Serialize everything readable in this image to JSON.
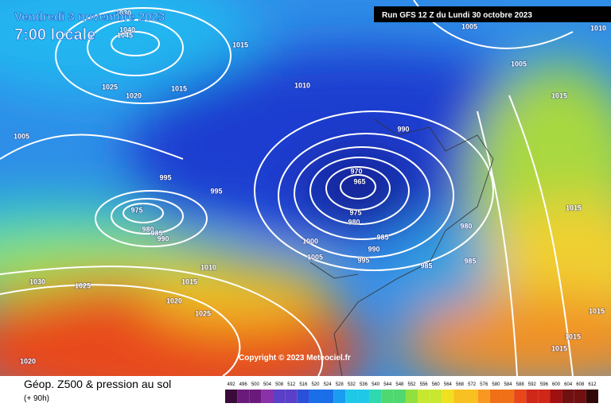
{
  "header": {
    "date": "Vendredi 3 novembre 2023",
    "time": "7:00 locale",
    "run": "Run GFS 12 Z du Lundi 30 octobre 2023"
  },
  "copyright": "Copyright © 2023 Meteociel.fr",
  "footer": {
    "title": "Géop. Z500 & pression au sol",
    "lead": "(+ 90h)"
  },
  "legend": {
    "levels": [
      492,
      496,
      500,
      504,
      508,
      512,
      516,
      520,
      524,
      528,
      532,
      536,
      540,
      544,
      548,
      552,
      556,
      560,
      564,
      568,
      572,
      576,
      580,
      584,
      588,
      592,
      596,
      600,
      604,
      608,
      612
    ]
  },
  "isobars": {
    "labels": [
      1030,
      1040,
      1045,
      1015,
      1025,
      1020,
      1015,
      1010,
      1005,
      1010,
      1005,
      1015,
      1005,
      990,
      995,
      995,
      975,
      980,
      985,
      990,
      970,
      965,
      975,
      980,
      985,
      990,
      995,
      1000,
      1005,
      980,
      985,
      985,
      1015,
      1010,
      1015,
      1030,
      1025,
      1020,
      1025,
      1015,
      1015,
      1015,
      1020
    ]
  }
}
